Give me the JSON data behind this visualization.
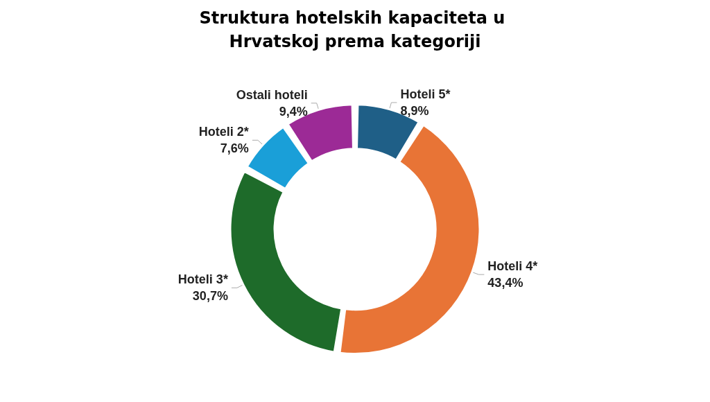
{
  "chart_data": {
    "type": "donut",
    "title": "Struktura hotelskih kapaciteta u Hrvatskoj prema kategoriji",
    "categories": [
      "Hoteli 5*",
      "Hoteli 4*",
      "Hoteli 3*",
      "Hoteli 2*",
      "Ostali hoteli"
    ],
    "values": [
      8.9,
      43.4,
      30.7,
      7.6,
      9.4
    ],
    "value_labels": [
      "8,9%",
      "43,4%",
      "30,7%",
      "7,6%",
      "9,4%"
    ],
    "colors": [
      "#1f5f87",
      "#e87436",
      "#1e6b2a",
      "#1a9fd8",
      "#9c2a96"
    ],
    "legend": false
  }
}
